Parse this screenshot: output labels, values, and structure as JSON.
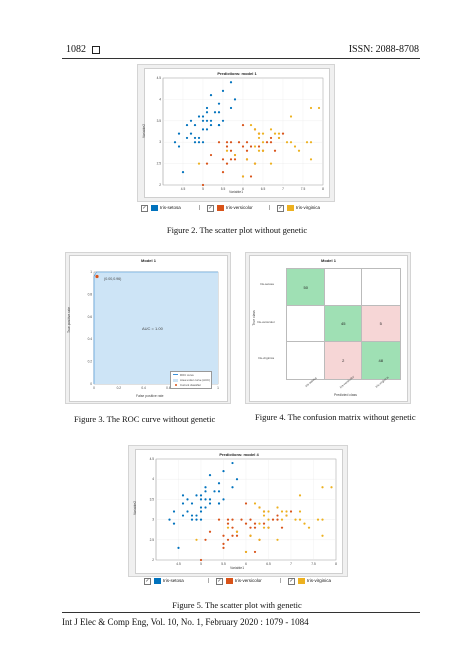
{
  "header": {
    "page_number": "1082",
    "issn": "ISSN: 2088-8708"
  },
  "footer": {
    "journal": "Int J Elec & Comp Eng, Vol. 10, No. 1, February 2020 :  1079 - 1084"
  },
  "captions": {
    "fig2": "Figure 2. The scatter plot without genetic",
    "fig3": "Figure 3. The ROC curve without genetic",
    "fig4": "Figure 4. The confusion matrix without genetic",
    "fig5": "Figure 5. The scatter plot with genetic"
  },
  "legend": {
    "setosa": "Iris-setosa",
    "versicolor": "Iris-versicolor",
    "virginica": "Iris-virginica"
  },
  "colors": {
    "setosa": "#0072bd",
    "versicolor": "#d95319",
    "virginica": "#edb120",
    "roc_fill": "#cde4f6",
    "roc_line": "#3a8fd8",
    "cm_correct": "#9fe0b4",
    "cm_wrong": "#f6d6d6"
  },
  "chart_data": [
    {
      "type": "scatter",
      "title": "Predictions: model 1",
      "xlabel": "Variable1",
      "ylabel": "Variable2",
      "xlim": [
        4,
        8
      ],
      "ylim": [
        2,
        4.5
      ],
      "xticks": [
        "4.5",
        "5",
        "5.5",
        "6",
        "6.5",
        "7",
        "7.5",
        "8"
      ],
      "yticks": [
        "2",
        "2.5",
        "3",
        "3.5",
        "4",
        "4.5"
      ],
      "series": [
        {
          "name": "Iris-setosa",
          "x": [
            4.3,
            4.4,
            4.4,
            4.5,
            4.6,
            4.6,
            4.7,
            4.7,
            4.8,
            4.8,
            4.9,
            4.9,
            5.0,
            5.0,
            5.0,
            5.1,
            5.1,
            5.1,
            5.2,
            5.2,
            5.3,
            5.4,
            5.4,
            5.4,
            5.5,
            5.5,
            5.7,
            5.7,
            5.8,
            4.8,
            5.0,
            5.1,
            5.4,
            4.9,
            5.2
          ],
          "y": [
            3.0,
            2.9,
            3.2,
            2.3,
            3.1,
            3.4,
            3.2,
            3.5,
            3.0,
            3.4,
            3.1,
            3.6,
            3.0,
            3.3,
            3.5,
            3.5,
            3.8,
            3.7,
            3.4,
            4.1,
            3.7,
            3.4,
            3.9,
            3.7,
            3.5,
            4.2,
            3.8,
            4.4,
            4.0,
            3.1,
            3.6,
            3.3,
            3.4,
            3.0,
            3.5
          ]
        },
        {
          "name": "Iris-versicolor",
          "x": [
            5.0,
            5.2,
            5.5,
            5.5,
            5.6,
            5.6,
            5.7,
            5.7,
            5.8,
            5.9,
            6.0,
            6.0,
            6.1,
            6.1,
            6.2,
            6.3,
            6.3,
            6.4,
            6.5,
            6.6,
            6.7,
            6.7,
            6.8,
            6.9,
            7.0,
            5.4,
            5.6,
            5.8,
            6.0,
            6.1,
            6.2,
            6.4,
            5.1,
            5.7
          ],
          "y": [
            2.0,
            2.7,
            2.3,
            2.6,
            2.5,
            3.0,
            2.8,
            2.6,
            2.7,
            3.0,
            2.2,
            2.9,
            2.8,
            3.0,
            2.2,
            2.5,
            3.3,
            2.9,
            2.8,
            3.0,
            3.1,
            3.0,
            2.8,
            3.1,
            3.2,
            3.0,
            2.9,
            2.6,
            3.4,
            2.6,
            2.9,
            3.2,
            2.5,
            3.0
          ]
        },
        {
          "name": "Iris-virginica",
          "x": [
            4.9,
            5.6,
            5.8,
            6.0,
            6.1,
            6.2,
            6.3,
            6.3,
            6.4,
            6.4,
            6.5,
            6.5,
            6.7,
            6.7,
            6.8,
            6.9,
            7.1,
            7.2,
            7.2,
            7.3,
            7.4,
            7.6,
            7.7,
            7.7,
            7.9,
            6.3,
            6.5,
            7.7,
            6.9,
            6.4
          ],
          "y": [
            2.5,
            2.8,
            2.7,
            2.2,
            2.6,
            3.4,
            2.5,
            3.3,
            2.8,
            3.2,
            3.0,
            3.2,
            2.5,
            3.3,
            3.2,
            3.1,
            3.0,
            3.0,
            3.6,
            2.9,
            2.8,
            3.0,
            2.6,
            3.8,
            3.8,
            2.9,
            2.8,
            3.0,
            3.2,
            3.1
          ]
        }
      ]
    },
    {
      "type": "line",
      "title": "Model 1",
      "xlabel": "False positive rate",
      "ylabel": "True positive rate",
      "xlim": [
        0,
        1
      ],
      "ylim": [
        0,
        1
      ],
      "xticks": [
        "0",
        "0.2",
        "0.4",
        "0.6",
        "0.8",
        "1"
      ],
      "yticks": [
        "0",
        "0.2",
        "0.4",
        "0.6",
        "0.8",
        "1"
      ],
      "annotation": "AUC = 1.00",
      "point_label": "(0.00,0.96)",
      "operating_point": [
        0.0,
        0.96
      ],
      "curve": {
        "x": [
          0,
          0,
          0.02,
          1
        ],
        "y": [
          0,
          0.96,
          1,
          1
        ]
      },
      "legend_entries": [
        "ROC curve",
        "Area under curve (AUC)",
        "Current classifier"
      ]
    },
    {
      "type": "heatmap",
      "title": "Model 1",
      "xlabel": "Predicted class",
      "ylabel": "True class",
      "classes": [
        "Iris-setosa",
        "Iris-versicolor",
        "Iris-virginica"
      ],
      "matrix": [
        [
          50,
          null,
          null
        ],
        [
          null,
          45,
          5
        ],
        [
          null,
          2,
          48
        ]
      ]
    },
    {
      "type": "scatter",
      "title": "Predictions: model 4",
      "xlabel": "Variable1",
      "ylabel": "Variable2",
      "xlim": [
        4,
        8
      ],
      "ylim": [
        2,
        4.5
      ],
      "xticks": [
        "4.5",
        "5",
        "5.5",
        "6",
        "6.5",
        "7",
        "7.5",
        "8"
      ],
      "yticks": [
        "2",
        "2.5",
        "3",
        "3.5",
        "4",
        "4.5"
      ],
      "series": [
        {
          "name": "Iris-setosa",
          "x": [
            4.3,
            4.4,
            4.4,
            4.5,
            4.6,
            4.6,
            4.7,
            4.7,
            4.8,
            4.8,
            4.9,
            4.9,
            5.0,
            5.0,
            5.0,
            5.1,
            5.1,
            5.1,
            5.2,
            5.2,
            5.3,
            5.4,
            5.4,
            5.4,
            5.5,
            5.5,
            5.7,
            5.7,
            5.8,
            4.8,
            5.0,
            5.1,
            5.4,
            4.9,
            5.2,
            5.0,
            4.6
          ],
          "y": [
            3.0,
            2.9,
            3.2,
            2.3,
            3.1,
            3.4,
            3.2,
            3.5,
            3.0,
            3.4,
            3.1,
            3.6,
            3.0,
            3.3,
            3.5,
            3.5,
            3.8,
            3.7,
            3.4,
            4.1,
            3.7,
            3.4,
            3.9,
            3.7,
            3.5,
            4.2,
            3.8,
            4.4,
            4.0,
            3.1,
            3.6,
            3.3,
            3.4,
            3.0,
            3.5,
            3.2,
            3.6
          ]
        },
        {
          "name": "Iris-versicolor",
          "x": [
            5.0,
            5.2,
            5.5,
            5.5,
            5.6,
            5.6,
            5.7,
            5.7,
            5.8,
            5.9,
            6.0,
            6.0,
            6.1,
            6.1,
            6.2,
            6.3,
            6.3,
            6.4,
            6.5,
            6.6,
            6.7,
            6.7,
            6.8,
            6.9,
            7.0,
            5.4,
            5.6,
            5.8,
            6.0,
            6.1,
            6.2,
            6.4,
            5.1,
            5.7,
            5.5,
            6.2
          ],
          "y": [
            2.0,
            2.7,
            2.3,
            2.6,
            2.5,
            3.0,
            2.8,
            2.6,
            2.7,
            3.0,
            2.2,
            2.9,
            2.8,
            3.0,
            2.2,
            2.5,
            3.3,
            2.9,
            2.8,
            3.0,
            3.1,
            3.0,
            2.8,
            3.1,
            3.2,
            3.0,
            2.9,
            2.6,
            3.4,
            2.6,
            2.9,
            3.2,
            2.5,
            3.0,
            2.4,
            2.8
          ]
        },
        {
          "name": "Iris-virginica",
          "x": [
            4.9,
            5.6,
            5.8,
            6.0,
            6.1,
            6.2,
            6.3,
            6.3,
            6.4,
            6.4,
            6.5,
            6.5,
            6.7,
            6.7,
            6.8,
            6.9,
            7.1,
            7.2,
            7.2,
            7.3,
            7.4,
            7.6,
            7.7,
            7.7,
            7.9,
            6.3,
            6.5,
            7.7,
            6.9,
            6.4,
            6.8,
            7.2
          ],
          "y": [
            2.5,
            2.8,
            2.7,
            2.2,
            2.6,
            3.4,
            2.5,
            3.3,
            2.8,
            3.2,
            3.0,
            3.2,
            2.5,
            3.3,
            3.2,
            3.1,
            3.0,
            3.0,
            3.6,
            2.9,
            2.8,
            3.0,
            2.6,
            3.8,
            3.8,
            2.9,
            2.8,
            3.0,
            3.2,
            3.1,
            3.0,
            3.2
          ]
        }
      ]
    }
  ]
}
